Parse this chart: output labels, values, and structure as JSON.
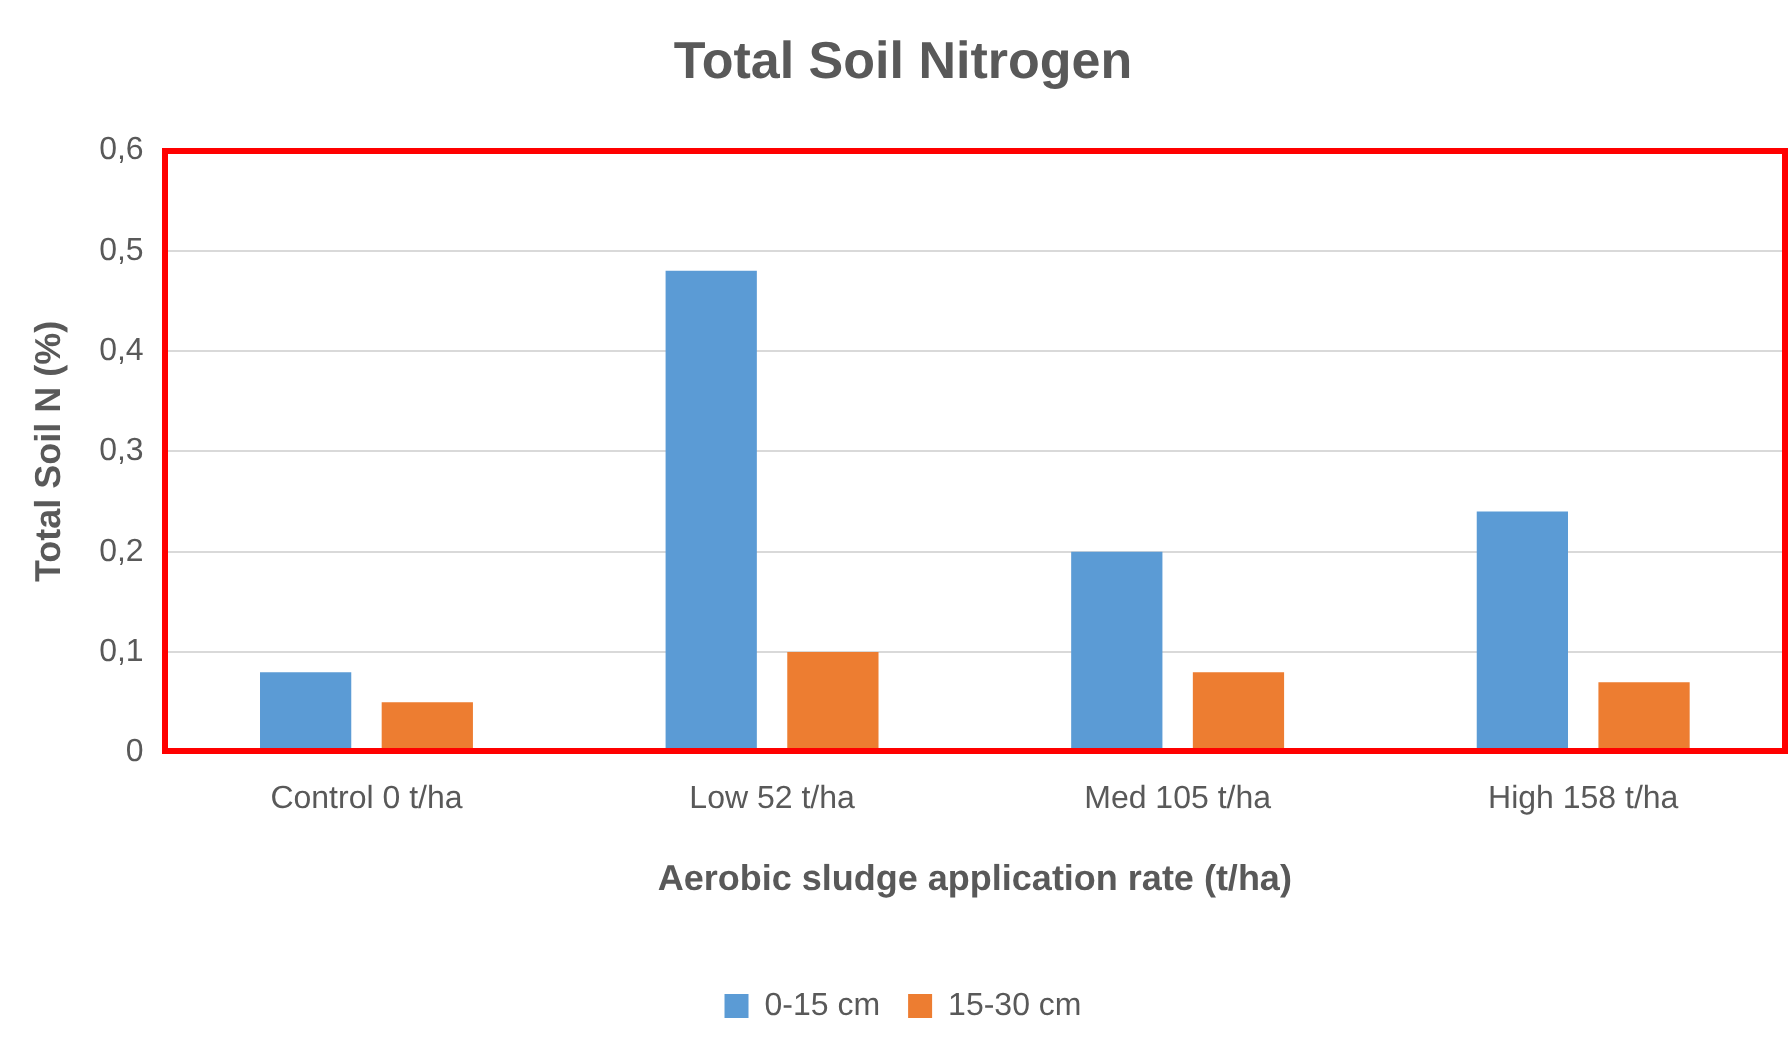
{
  "chart_data": {
    "type": "bar",
    "title": "Total Soil Nitrogen",
    "xlabel": "Aerobic sludge application rate (t/ha)",
    "ylabel": "Total Soil N (%)",
    "categories": [
      "Control 0 t/ha",
      "Low 52 t/ha",
      "Med 105 t/ha",
      "High 158 t/ha"
    ],
    "series": [
      {
        "name": "0-15 cm",
        "color": "#5b9bd5",
        "values": [
          0.08,
          0.48,
          0.2,
          0.24
        ]
      },
      {
        "name": "15-30 cm",
        "color": "#ed7d31",
        "values": [
          0.05,
          0.1,
          0.08,
          0.07
        ]
      }
    ],
    "ylim": [
      0,
      0.6
    ],
    "yticks": [
      0,
      {
        "value": 0.1,
        "label": "0,1"
      },
      {
        "value": 0.2,
        "label": "0,2"
      },
      {
        "value": 0.3,
        "label": "0,3"
      },
      {
        "value": 0.4,
        "label": "0,4"
      },
      {
        "value": 0.5,
        "label": "0,5"
      },
      {
        "value": 0.6,
        "label": "0,6"
      }
    ],
    "grid": "y",
    "legend": "bottom"
  }
}
